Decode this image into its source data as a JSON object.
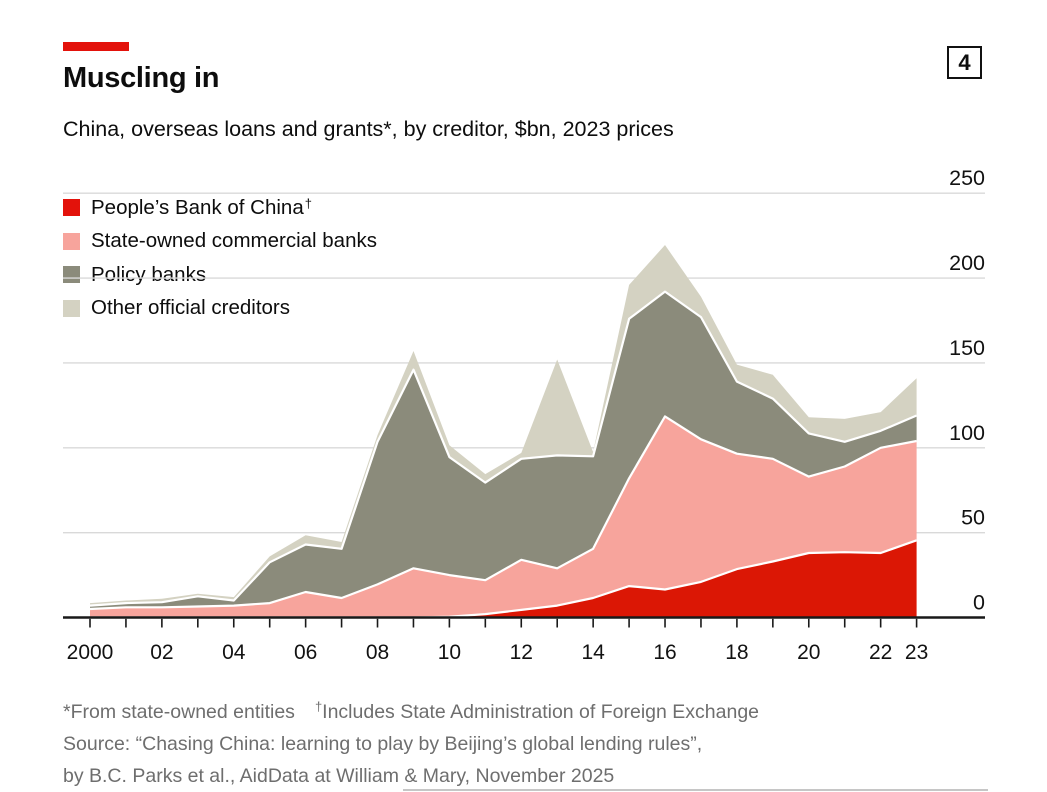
{
  "header": {
    "title": "Muscling in",
    "subtitle": "China, overseas loans and grants*, by creditor, $bn, 2023 prices",
    "badge": "4",
    "accent_color": "#E3120B"
  },
  "legend": [
    {
      "label": "People’s Bank of China",
      "sup": "†",
      "color": "#E3120B"
    },
    {
      "label": "State-owned commercial banks",
      "sup": "",
      "color": "#F7A49C"
    },
    {
      "label": "Policy banks",
      "sup": "",
      "color": "#8B8B7B"
    },
    {
      "label": "Other official creditors",
      "sup": "",
      "color": "#D4D2C2"
    }
  ],
  "chart_data": {
    "type": "area",
    "stacked": true,
    "title": "Muscling in",
    "subtitle": "China, overseas loans and grants*, by creditor, $bn, 2023 prices",
    "units": "$bn, 2023 prices",
    "grid": "horizontal",
    "legend_position": "top-left",
    "ylim": [
      0,
      250
    ],
    "y_ticks": [
      0,
      50,
      100,
      150,
      200,
      250
    ],
    "x": [
      2000,
      2001,
      2002,
      2003,
      2004,
      2005,
      2006,
      2007,
      2008,
      2009,
      2010,
      2011,
      2012,
      2013,
      2014,
      2015,
      2016,
      2017,
      2018,
      2019,
      2020,
      2021,
      2022,
      2023
    ],
    "x_ticks": [
      {
        "label": "2000",
        "i": 0
      },
      {
        "label": "02",
        "i": 2
      },
      {
        "label": "04",
        "i": 4
      },
      {
        "label": "06",
        "i": 6
      },
      {
        "label": "08",
        "i": 8
      },
      {
        "label": "10",
        "i": 10
      },
      {
        "label": "12",
        "i": 12
      },
      {
        "label": "14",
        "i": 14
      },
      {
        "label": "16",
        "i": 16
      },
      {
        "label": "18",
        "i": 18
      },
      {
        "label": "20",
        "i": 20
      },
      {
        "label": "22",
        "i": 22
      },
      {
        "label": "23",
        "i": 23
      }
    ],
    "series": [
      {
        "name": "People's Bank of China",
        "color": "#DB1705",
        "values": [
          0,
          0,
          0,
          0,
          0,
          0,
          0,
          0,
          0,
          0,
          0.5,
          2,
          4.5,
          7,
          11.5,
          18.5,
          16.5,
          21,
          28.5,
          33,
          38,
          38.5,
          38,
          45.5
        ]
      },
      {
        "name": "State-owned commercial banks",
        "color": "#F7A49C",
        "values": [
          5,
          6,
          6,
          6.5,
          7,
          8.5,
          15,
          11.5,
          19.5,
          29,
          24.5,
          20,
          29.5,
          22,
          29,
          63.5,
          102,
          84,
          68,
          60.5,
          45,
          50.5,
          62,
          58.5
        ]
      },
      {
        "name": "Policy banks",
        "color": "#8B8B7B",
        "values": [
          2,
          2.5,
          3,
          6,
          3,
          24,
          28,
          29,
          84,
          117,
          69.5,
          57.5,
          59.5,
          66.5,
          54.5,
          94,
          73.5,
          72,
          42.5,
          35.5,
          25.5,
          14.5,
          10,
          15
        ]
      },
      {
        "name": "Other official creditors",
        "color": "#D4D2C2",
        "values": [
          1.5,
          1.5,
          2,
          1.5,
          2,
          3.5,
          5.5,
          4,
          4,
          11,
          7,
          5,
          3.5,
          56.5,
          2.5,
          20,
          27.5,
          12,
          10,
          14,
          9.5,
          13.5,
          11,
          22
        ]
      }
    ]
  },
  "footnotes": {
    "line1_a": "*From state-owned entities",
    "line1_dagger": "†",
    "line1_b": "Includes State Administration of Foreign Exchange",
    "line2": "Source: “Chasing China: learning to play by Beijing’s global lending rules”,",
    "line3": "by B.C. Parks et al., AidData at William & Mary, November 2025"
  }
}
